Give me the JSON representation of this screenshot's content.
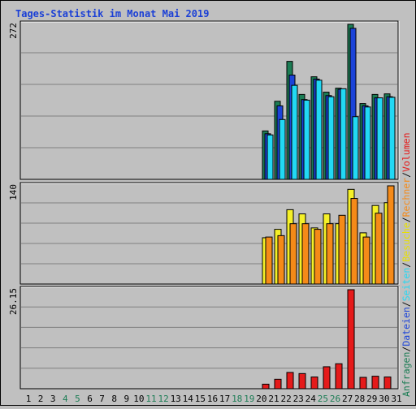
{
  "chart_data": {
    "type": "bar",
    "title": "Tages-Statistik im Monat Mai 2019",
    "days": [
      "1",
      "2",
      "3",
      "4",
      "5",
      "6",
      "7",
      "8",
      "9",
      "10",
      "11",
      "12",
      "13",
      "14",
      "15",
      "16",
      "17",
      "18",
      "19",
      "20",
      "21",
      "22",
      "23",
      "24",
      "25",
      "26",
      "27",
      "28",
      "29",
      "30",
      "31"
    ],
    "weekend_days": [
      "4",
      "5",
      "11",
      "12",
      "18",
      "19",
      "25",
      "26"
    ],
    "panels": [
      {
        "id": "anfragen",
        "ymax": 272,
        "ymax_label": "272",
        "series": [
          {
            "name": "Anfragen",
            "color": "#1c7d55",
            "values": [
              0,
              0,
              0,
              0,
              0,
              0,
              0,
              0,
              0,
              0,
              0,
              0,
              0,
              0,
              0,
              0,
              0,
              0,
              0,
              0,
              85,
              137,
              207,
              149,
              180,
              153,
              160,
              272,
              133,
              149,
              150
            ]
          },
          {
            "name": "Dateien",
            "color": "#1b43d9",
            "values": [
              0,
              0,
              0,
              0,
              0,
              0,
              0,
              0,
              0,
              0,
              0,
              0,
              0,
              0,
              0,
              0,
              0,
              0,
              0,
              0,
              80,
              129,
              183,
              140,
              176,
              147,
              158,
              265,
              129,
              143,
              145
            ]
          },
          {
            "name": "Seiten",
            "color": "#22d8f4",
            "values": [
              0,
              0,
              0,
              0,
              0,
              0,
              0,
              0,
              0,
              0,
              0,
              0,
              0,
              0,
              0,
              0,
              0,
              0,
              0,
              0,
              78,
              105,
              165,
              139,
              174,
              145,
              159,
              110,
              127,
              143,
              144
            ]
          }
        ]
      },
      {
        "id": "besuche",
        "ymax": 140,
        "ymax_label": "140",
        "series": [
          {
            "name": "Besuche",
            "color": "#f5f028",
            "values": [
              0,
              0,
              0,
              0,
              0,
              0,
              0,
              0,
              0,
              0,
              0,
              0,
              0,
              0,
              0,
              0,
              0,
              0,
              0,
              0,
              66,
              78,
              106,
              100,
              80,
              100,
              86,
              135,
              73,
              112,
              116
            ]
          },
          {
            "name": "Rechner",
            "color": "#f58a18",
            "values": [
              0,
              0,
              0,
              0,
              0,
              0,
              0,
              0,
              0,
              0,
              0,
              0,
              0,
              0,
              0,
              0,
              0,
              0,
              0,
              0,
              67,
              69,
              86,
              86,
              78,
              86,
              98,
              122,
              67,
              101,
              140
            ]
          }
        ]
      },
      {
        "id": "volumen",
        "ymax": 26.15,
        "ymax_label": "26.15",
        "series": [
          {
            "name": "Volumen",
            "color": "#e51a1a",
            "values": [
              0,
              0,
              0,
              0,
              0,
              0,
              0,
              0,
              0,
              0,
              0,
              0,
              0,
              0,
              0,
              0,
              0,
              0,
              0,
              0,
              1.2,
              2.5,
              4.3,
              4.0,
              3.1,
              5.8,
              6.6,
              26.15,
              3.0,
              3.3,
              3.1
            ]
          }
        ]
      }
    ],
    "legend_top": [
      {
        "text": "Anfragen",
        "color": "#1c7d55"
      },
      {
        "text": "/",
        "color": "#000000"
      },
      {
        "text": "Dateien",
        "color": "#1b43d9"
      },
      {
        "text": "/",
        "color": "#000000"
      },
      {
        "text": "Seiten",
        "color": "#22d8f4"
      },
      {
        "text": "/",
        "color": "#000000"
      },
      {
        "text": "Besuche",
        "color": "#e8e000"
      },
      {
        "text": "/",
        "color": "#000000"
      },
      {
        "text": "Rechner",
        "color": "#f58a18"
      },
      {
        "text": "/",
        "color": "#000000"
      },
      {
        "text": "Volumen",
        "color": "#e51a1a"
      }
    ],
    "grid": true
  }
}
